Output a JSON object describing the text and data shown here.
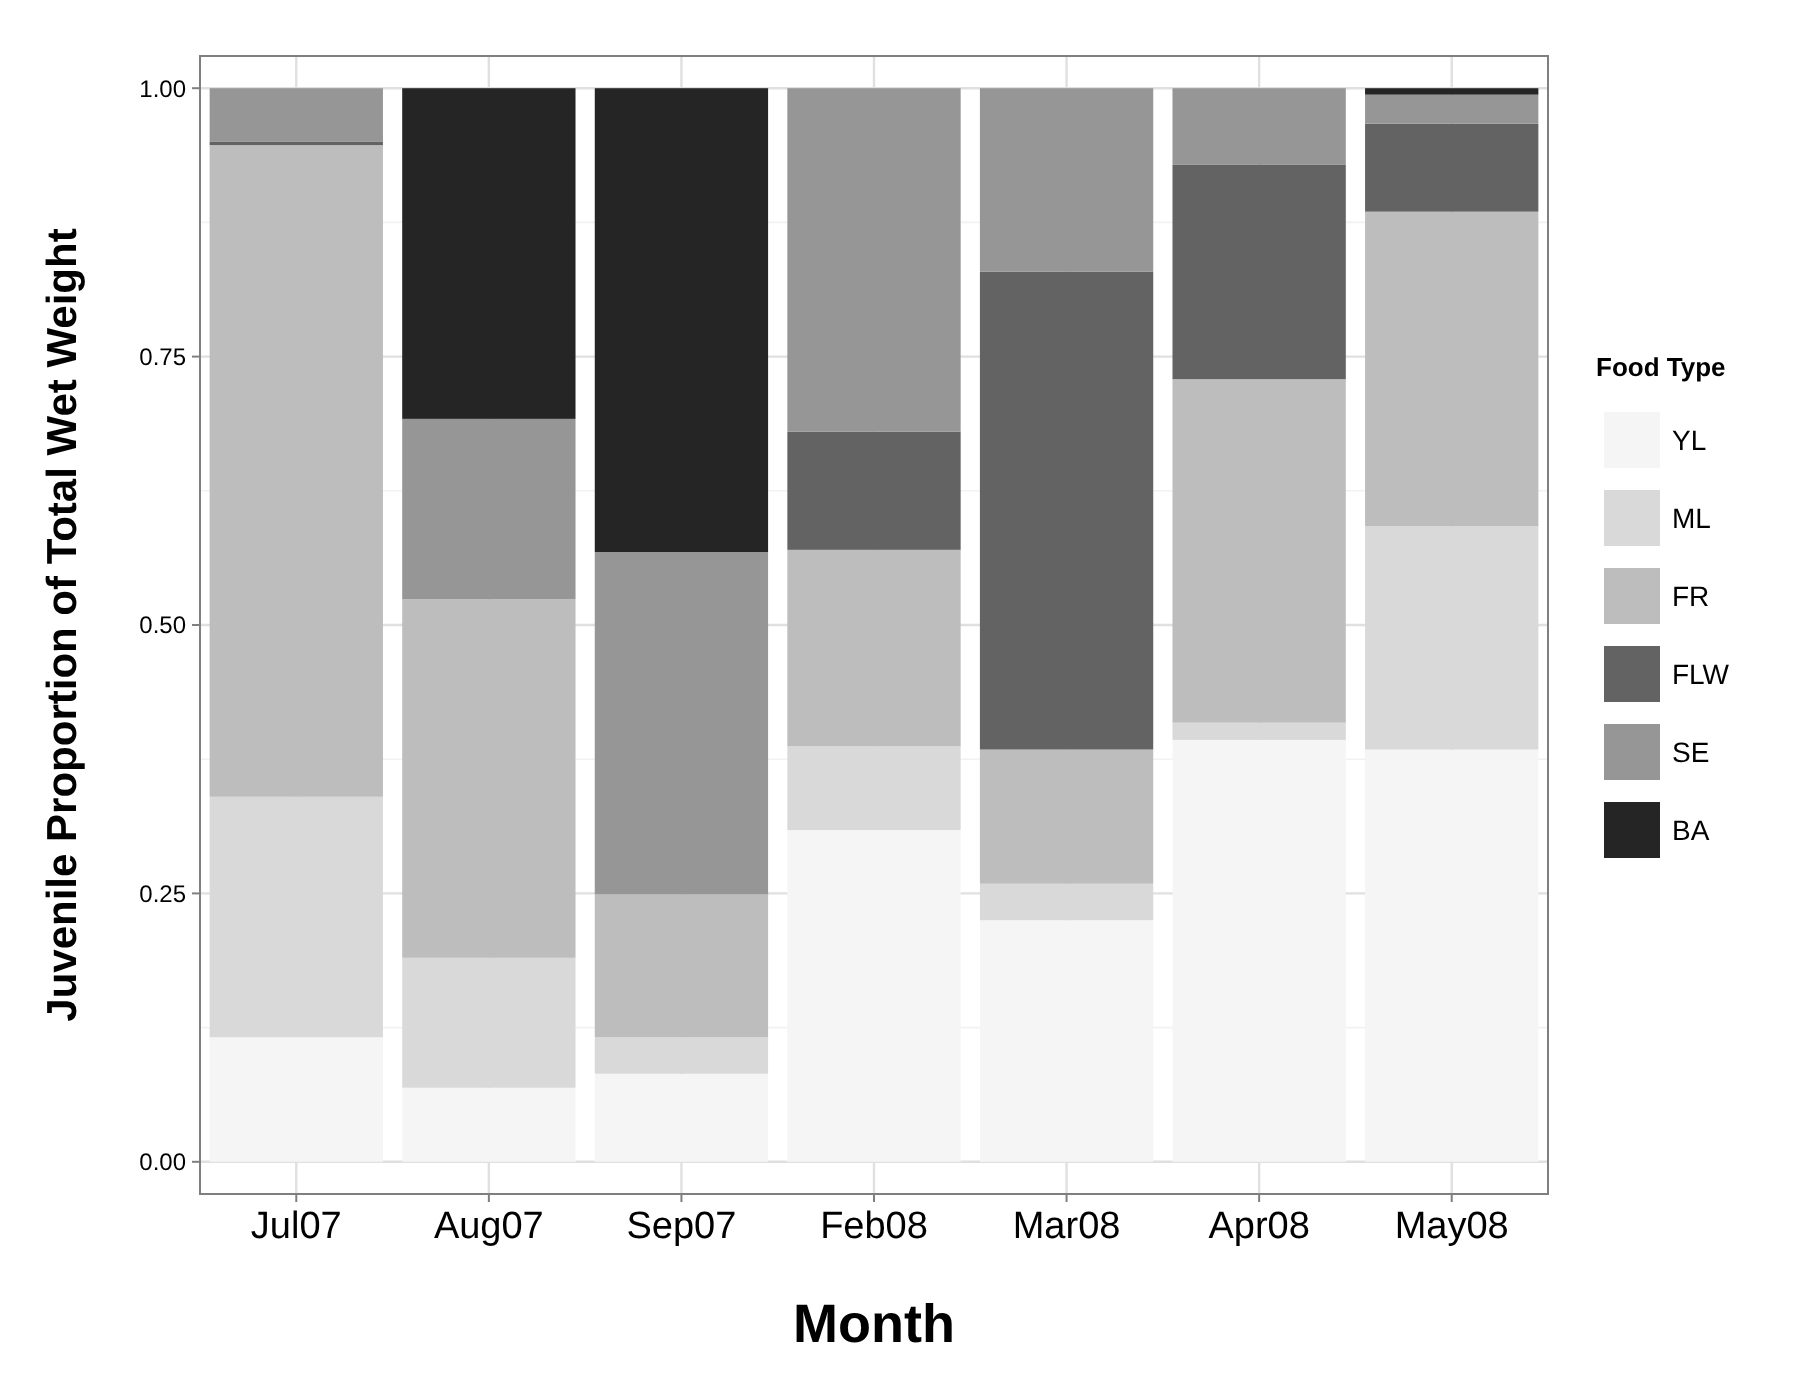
{
  "chart_data": {
    "type": "bar",
    "stacked": true,
    "xlabel": "Month",
    "ylabel": "Juvenile Proportion of Total Wet Weight",
    "legend_title": "Food Type",
    "legend": "right",
    "grid": true,
    "categories": [
      "Jul07",
      "Aug07",
      "Sep07",
      "Feb08",
      "Mar08",
      "Apr08",
      "May08"
    ],
    "ylim": [
      -0.03,
      1.03
    ],
    "yticks": [
      {
        "value": 0,
        "label": "0.00"
      },
      {
        "value": 0.25,
        "label": "0.25"
      },
      {
        "value": 0.5,
        "label": "0.50"
      },
      {
        "value": 0.75,
        "label": "0.75"
      },
      {
        "value": 1,
        "label": "1.00"
      }
    ],
    "series": [
      {
        "name": "YL",
        "color": "#f5f5f5",
        "values": [
          0.116,
          0.069,
          0.082,
          0.309,
          0.225,
          0.393,
          0.384
        ]
      },
      {
        "name": "ML",
        "color": "#d9d9d9",
        "values": [
          0.224,
          0.121,
          0.034,
          0.078,
          0.034,
          0.016,
          0.208
        ]
      },
      {
        "name": "FR",
        "color": "#bdbdbd",
        "values": [
          0.607,
          0.334,
          0.133,
          0.183,
          0.125,
          0.32,
          0.293
        ]
      },
      {
        "name": "FLW",
        "color": "#636363",
        "values": [
          0.003,
          0,
          0,
          0.11,
          0.445,
          0.2,
          0.082
        ]
      },
      {
        "name": "SE",
        "color": "#969696",
        "values": [
          0.05,
          0.168,
          0.319,
          0.32,
          0.171,
          0.071,
          0.027
        ]
      },
      {
        "name": "BA",
        "color": "#252525",
        "values": [
          0,
          0.308,
          0.432,
          0,
          0,
          0,
          0.006
        ]
      }
    ]
  }
}
